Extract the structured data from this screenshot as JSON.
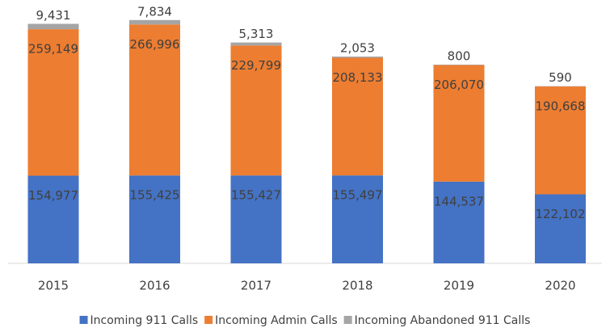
{
  "chart_data": {
    "type": "stacked-bar",
    "categories": [
      "2015",
      "2016",
      "2017",
      "2018",
      "2019",
      "2020"
    ],
    "series": [
      {
        "name": "Incoming 911 Calls",
        "color": "#4472c4",
        "values": [
          154977,
          155425,
          155427,
          155497,
          144537,
          122102
        ],
        "value_labels": [
          "154,977",
          "155,425",
          "155,427",
          "155,497",
          "144,537",
          "122,102"
        ]
      },
      {
        "name": "Incoming Admin Calls",
        "color": "#ed7d31",
        "values": [
          259149,
          266996,
          229799,
          208133,
          206070,
          190668
        ],
        "value_labels": [
          "259,149",
          "266,996",
          "229,799",
          "208,133",
          "206,070",
          "190,668"
        ]
      },
      {
        "name": "Incoming Abandoned 911 Calls",
        "color": "#a5a5a5",
        "values": [
          9431,
          7834,
          5313,
          2053,
          800,
          590
        ],
        "value_labels": [
          "9,431",
          "7,834",
          "5,313",
          "2,053",
          "800",
          "590"
        ]
      }
    ],
    "ylim": [
      0,
      450000
    ],
    "legend": "bottom"
  }
}
